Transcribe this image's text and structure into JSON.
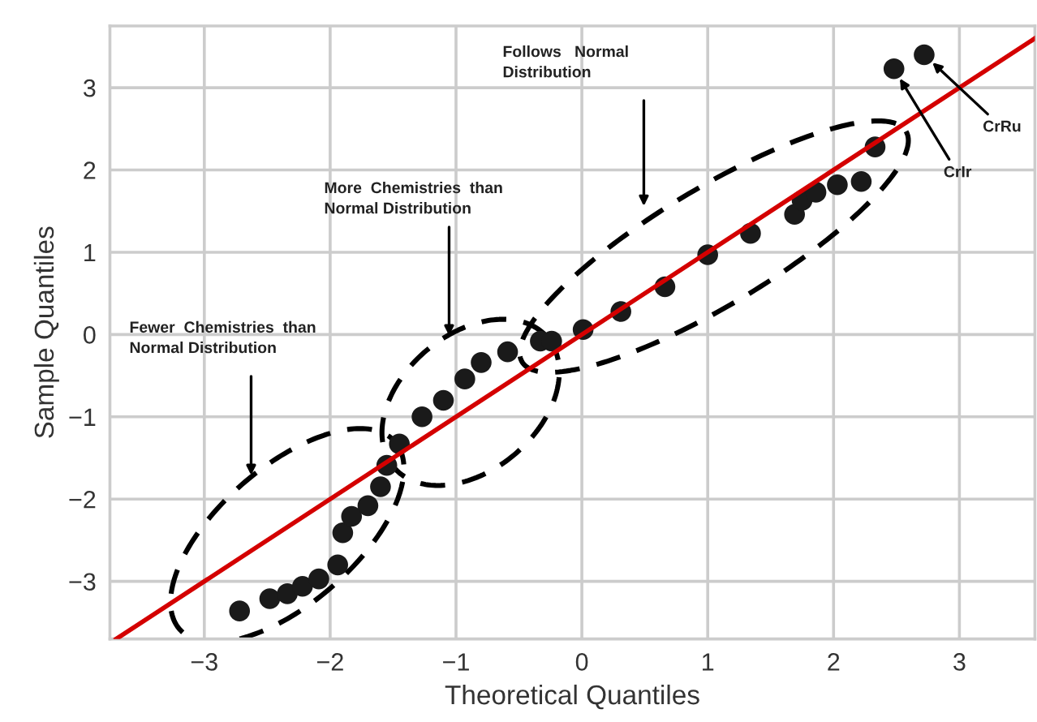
{
  "chart_data": {
    "type": "scatter",
    "xlabel": "Theoretical Quantiles",
    "ylabel": "Sample Quantiles",
    "xlim": [
      -3.75,
      3.6
    ],
    "ylim": [
      -3.7,
      3.75
    ],
    "xticks": [
      -3,
      -2,
      -1,
      0,
      1,
      2,
      3
    ],
    "yticks": [
      -3,
      -2,
      -1,
      0,
      1,
      2,
      3
    ],
    "grid": true,
    "series": [
      {
        "marker": "circle",
        "color": "#1a1a1a",
        "x": [
          -2.72,
          -2.48,
          -2.34,
          -2.22,
          -2.09,
          -1.94,
          -1.9,
          -1.83,
          -1.7,
          -1.6,
          -1.55,
          -1.45,
          -1.27,
          -1.1,
          -0.93,
          -0.8,
          -0.59,
          -0.33,
          -0.24,
          0.01,
          0.31,
          0.66,
          1.0,
          1.34,
          1.69,
          1.75,
          1.86,
          2.03,
          2.22,
          2.33,
          2.48,
          2.72
        ],
        "values": [
          -3.36,
          -3.21,
          -3.15,
          -3.06,
          -2.97,
          -2.8,
          -2.41,
          -2.21,
          -2.08,
          -1.85,
          -1.59,
          -1.33,
          -1.0,
          -0.8,
          -0.54,
          -0.34,
          -0.21,
          -0.08,
          -0.08,
          0.06,
          0.28,
          0.58,
          0.97,
          1.23,
          1.46,
          1.63,
          1.73,
          1.82,
          1.86,
          2.28,
          3.23,
          3.4
        ]
      },
      {
        "type": "line",
        "color": "#d40000",
        "line_style": "solid",
        "x": [
          -3.7,
          3.6
        ],
        "values": [
          -3.7,
          3.6
        ]
      }
    ],
    "annotations": [
      "Fewer  Chemistries  than\nNormal Distribution",
      "More  Chemistries  than\nNormal Distribution",
      "Follows   Normal\nDistribution",
      {
        "text": "CrIr",
        "x": 2.48,
        "y": 3.23
      },
      {
        "text": "CrRu",
        "x": 2.72,
        "y": 3.4
      }
    ]
  }
}
